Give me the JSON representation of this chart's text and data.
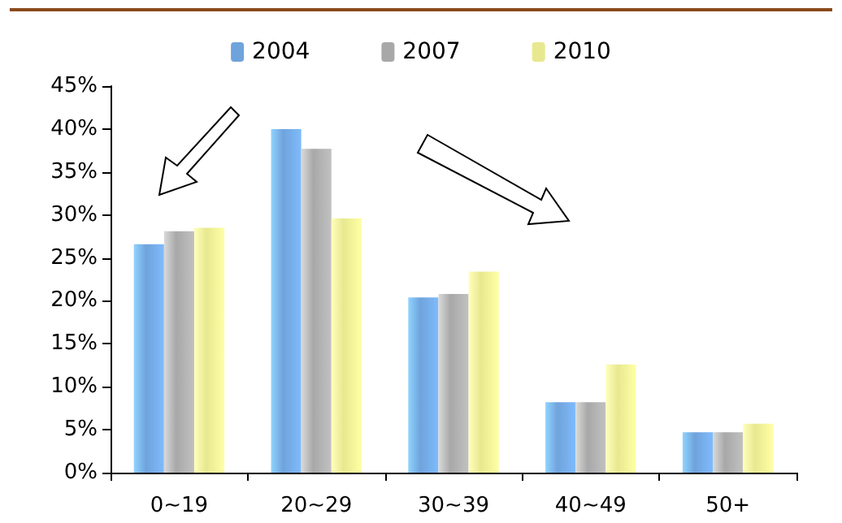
{
  "chart_data": {
    "type": "bar",
    "categories": [
      "0~19",
      "20~29",
      "30~39",
      "40~49",
      "50+"
    ],
    "series": [
      {
        "name": "2004",
        "color": "#6fa3dc",
        "values": [
          26.6,
          40,
          20.4,
          8.2,
          4.7
        ]
      },
      {
        "name": "2007",
        "color": "#a8a8a8",
        "values": [
          28.1,
          37.7,
          20.8,
          8.2,
          4.7
        ]
      },
      {
        "name": "2010",
        "color": "#e8e890",
        "values": [
          28.5,
          29.6,
          23.4,
          12.6,
          5.7
        ]
      }
    ],
    "ylim": [
      0,
      45
    ],
    "yticks": [
      {
        "value": 0,
        "label": "0%"
      },
      {
        "value": 5,
        "label": "5%"
      },
      {
        "value": 10,
        "label": "10%"
      },
      {
        "value": 15,
        "label": "15%"
      },
      {
        "value": 20,
        "label": "20%"
      },
      {
        "value": 25,
        "label": "25%"
      },
      {
        "value": 30,
        "label": "30%"
      },
      {
        "value": 35,
        "label": "35%"
      },
      {
        "value": 40,
        "label": "40%"
      },
      {
        "value": 45,
        "label": "45%"
      }
    ],
    "grid": false,
    "legend": "top"
  }
}
